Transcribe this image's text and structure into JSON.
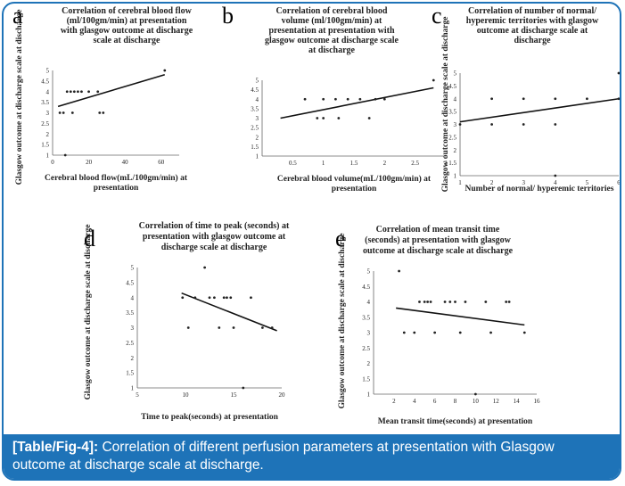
{
  "caption": {
    "label": "[Table/Fig-4]:",
    "text": " Correlation of different perfusion parameters at presentation with Glasgow outcome at discharge scale at discharge."
  },
  "colors": {
    "frame": "#1e73b8",
    "caption_bg": "#1e73b8",
    "caption_text": "#ffffff",
    "points": "#222222",
    "trendline": "#111111"
  },
  "chart_data": [
    {
      "id": "a",
      "panel_letter": "a",
      "type": "scatter",
      "title": [
        "Correlation of cerebral blood flow",
        "(ml/100gm/min)  at presentation",
        "with glasgow outcome at discharge",
        "scale at discharge"
      ],
      "xlabel": [
        "Cerebral blood flow(mL/100gm/min) at",
        "presentation"
      ],
      "ylabel": "Glasgow outcome at discharge scale at discharge",
      "xlim": [
        0,
        70
      ],
      "ylim": [
        1,
        5
      ],
      "xticks": [
        0,
        20,
        40,
        60
      ],
      "yticks": [
        1,
        1.5,
        2,
        2.5,
        3,
        3.5,
        4,
        4.5,
        5
      ],
      "points": [
        [
          4,
          3
        ],
        [
          6,
          3
        ],
        [
          7,
          1
        ],
        [
          11,
          3
        ],
        [
          8,
          4
        ],
        [
          10,
          4
        ],
        [
          12,
          4
        ],
        [
          14,
          4
        ],
        [
          16,
          4
        ],
        [
          20,
          4
        ],
        [
          25,
          4
        ],
        [
          26,
          3
        ],
        [
          28,
          3
        ],
        [
          62,
          5
        ]
      ],
      "trendline": [
        [
          3,
          3.3
        ],
        [
          62,
          4.8
        ]
      ]
    },
    {
      "id": "b",
      "panel_letter": "b",
      "type": "scatter",
      "title": [
        "Correlation of cerebral blood",
        "volume (ml/100gm/min)  at",
        "presentation at presentation with",
        "glasgow outcome at discharge scale",
        "at discharge"
      ],
      "xlabel": [
        "Cerebral blood volume(mL/100gm/min) at",
        "presentation"
      ],
      "ylabel": "",
      "xlim": [
        0,
        3
      ],
      "ylim": [
        1,
        5
      ],
      "xticks": [
        0.5,
        1,
        1.5,
        2,
        2.5,
        3
      ],
      "yticks": [
        1,
        1.5,
        2,
        2.5,
        3,
        3.5,
        4,
        4.5,
        5
      ],
      "points": [
        [
          0.7,
          4
        ],
        [
          0.9,
          3
        ],
        [
          1.0,
          3
        ],
        [
          1.0,
          4
        ],
        [
          1.2,
          4
        ],
        [
          1.25,
          3
        ],
        [
          1.4,
          4
        ],
        [
          1.6,
          4
        ],
        [
          1.75,
          3
        ],
        [
          1.85,
          4
        ],
        [
          2.0,
          4
        ],
        [
          2.8,
          5
        ]
      ],
      "trendline": [
        [
          0.3,
          3.0
        ],
        [
          2.8,
          4.6
        ]
      ]
    },
    {
      "id": "c",
      "panel_letter": "c",
      "type": "scatter",
      "title": [
        "Correlation of number of  normal/",
        "hyperemic territories with glasgow",
        "outcome at discharge scale at",
        "discharge"
      ],
      "xlabel": [
        "Number of  normal/ hyperemic territories"
      ],
      "ylabel": "Glasgow outcome at discharge scale at discharge",
      "xlim": [
        1,
        6
      ],
      "ylim": [
        1,
        5
      ],
      "xticks": [
        1,
        2,
        3,
        4,
        5,
        6
      ],
      "yticks": [
        1,
        1.5,
        2,
        2.5,
        3,
        3.5,
        4,
        4.5,
        5
      ],
      "points": [
        [
          1,
          3
        ],
        [
          2,
          3
        ],
        [
          2,
          4
        ],
        [
          3,
          3
        ],
        [
          3,
          4
        ],
        [
          4,
          1
        ],
        [
          4,
          3
        ],
        [
          4,
          4
        ],
        [
          5,
          4
        ],
        [
          6,
          4
        ],
        [
          6,
          5
        ]
      ],
      "trendline": [
        [
          1,
          3.1
        ],
        [
          6,
          4.0
        ]
      ]
    },
    {
      "id": "d",
      "panel_letter": "d",
      "type": "scatter",
      "title": [
        "Correlation of time to peak (seconds) at",
        "presentation with glasgow outcome at",
        "discharge scale at discharge"
      ],
      "xlabel": [
        "Time to peak(seconds) at presentation"
      ],
      "ylabel": "Glasgow outcome at discharge scale at discharge",
      "xlim": [
        5,
        20
      ],
      "ylim": [
        1,
        5
      ],
      "xticks": [
        5,
        10,
        15,
        20
      ],
      "yticks": [
        1,
        1.5,
        2,
        2.5,
        3,
        3.5,
        4,
        4.5,
        5
      ],
      "points": [
        [
          9.7,
          4
        ],
        [
          10.3,
          3
        ],
        [
          11,
          4
        ],
        [
          12,
          5
        ],
        [
          12.5,
          4
        ],
        [
          13,
          4
        ],
        [
          13.5,
          3
        ],
        [
          14,
          4
        ],
        [
          14.3,
          4
        ],
        [
          14.7,
          4
        ],
        [
          15,
          3
        ],
        [
          16,
          1
        ],
        [
          16.8,
          4
        ],
        [
          18,
          3
        ],
        [
          19,
          3
        ]
      ],
      "trendline": [
        [
          9.6,
          4.15
        ],
        [
          19.5,
          2.9
        ]
      ]
    },
    {
      "id": "e",
      "panel_letter": "e",
      "type": "scatter",
      "title": [
        "Correlation of mean transit time",
        "(seconds) at presentation with glasgow",
        "outcome at discharge scale at discharge"
      ],
      "xlabel": [
        "Mean transit time(seconds) at presentation"
      ],
      "ylabel": "Glasgow outcome at discharge scale at discharge",
      "xlim": [
        0,
        16
      ],
      "ylim": [
        1,
        5
      ],
      "xticks": [
        2,
        4,
        6,
        8,
        10,
        12,
        14,
        16
      ],
      "yticks": [
        1,
        1.5,
        2,
        2.5,
        3,
        3.5,
        4,
        4.5,
        5
      ],
      "points": [
        [
          2.5,
          5
        ],
        [
          3,
          3
        ],
        [
          4,
          3
        ],
        [
          4.5,
          4
        ],
        [
          5,
          4
        ],
        [
          5.3,
          4
        ],
        [
          5.6,
          4
        ],
        [
          6,
          3
        ],
        [
          7,
          4
        ],
        [
          7.5,
          4
        ],
        [
          8,
          4
        ],
        [
          8.5,
          3
        ],
        [
          9,
          4
        ],
        [
          10,
          1
        ],
        [
          11,
          4
        ],
        [
          11.5,
          3
        ],
        [
          13,
          4
        ],
        [
          13.3,
          4
        ],
        [
          14.8,
          3
        ]
      ],
      "trendline": [
        [
          2.2,
          3.8
        ],
        [
          14.8,
          3.25
        ]
      ]
    }
  ]
}
